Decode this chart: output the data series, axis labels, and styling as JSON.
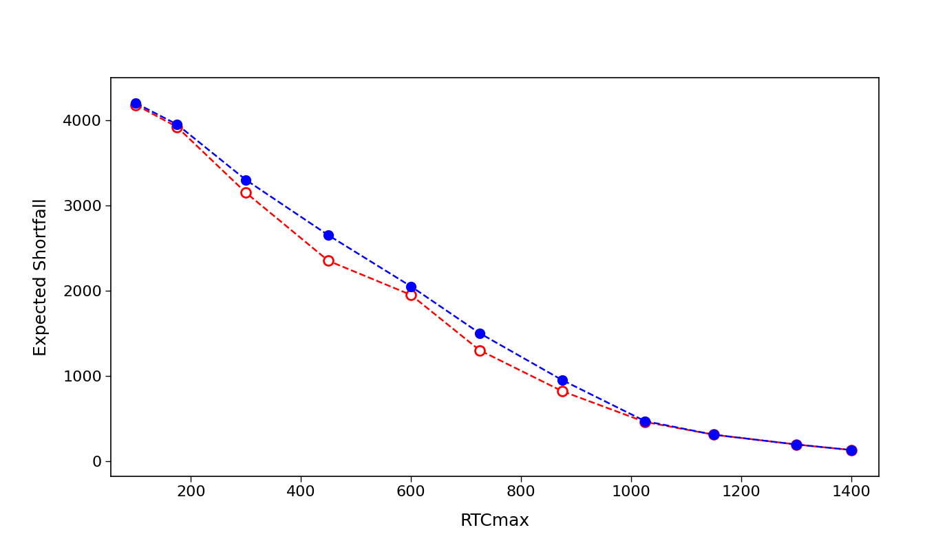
{
  "xlabel": "RTCmax",
  "ylabel": "Expected Shortfall",
  "xlim": [
    55,
    1450
  ],
  "ylim": [
    -180,
    4500
  ],
  "xticks": [
    200,
    400,
    600,
    800,
    1000,
    1200,
    1400
  ],
  "yticks": [
    0,
    1000,
    2000,
    3000,
    4000
  ],
  "blue_x": [
    100,
    175,
    300,
    450,
    600,
    725,
    875,
    1025,
    1150,
    1300,
    1400
  ],
  "blue_y": [
    4200,
    3950,
    3300,
    2650,
    2050,
    1500,
    950,
    470,
    310,
    195,
    130
  ],
  "red_x": [
    100,
    175,
    300,
    450,
    600,
    725,
    875,
    1025,
    1150,
    1300,
    1400
  ],
  "red_y": [
    4180,
    3920,
    3150,
    2350,
    1950,
    1300,
    820,
    460,
    310,
    195,
    130
  ],
  "blue_color": "#0000FF",
  "red_color": "#FF0000",
  "bg_color": "#FFFFFF",
  "font_size": 16,
  "axis_label_fontsize": 18,
  "line_width": 1.8,
  "marker_size": 10
}
